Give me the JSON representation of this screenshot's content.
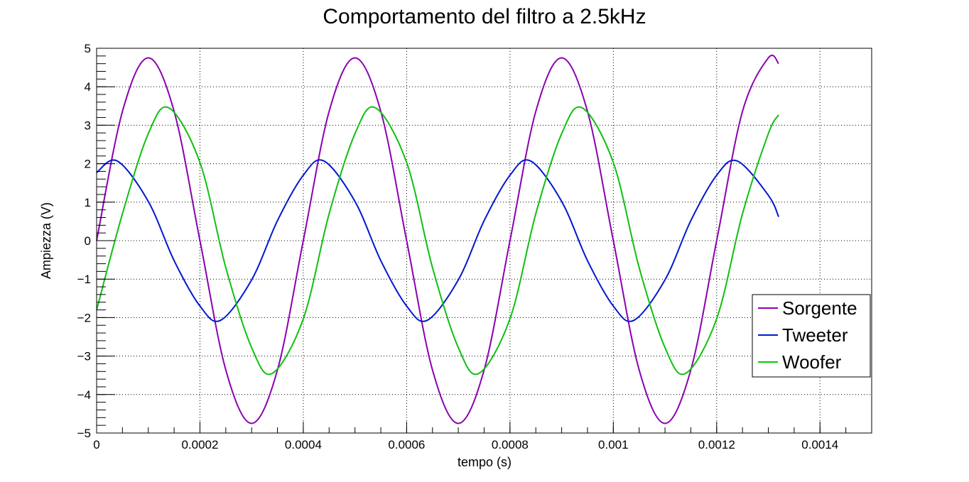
{
  "chart_data": {
    "type": "line",
    "title": "Comportamento del filtro a 2.5kHz",
    "xlabel": "tempo (s)",
    "ylabel": "Ampiezza (V)",
    "xlim": [
      0,
      0.0015
    ],
    "ylim": [
      -5,
      5
    ],
    "x_ticks": [
      0,
      0.0002,
      0.0004,
      0.0006,
      0.0008,
      0.001,
      0.0012,
      0.0014
    ],
    "x_tick_labels": [
      "0",
      "0.0002",
      "0.0004",
      "0.0006",
      "0.0008",
      "0.001",
      "0.0012",
      "0.0014"
    ],
    "y_ticks": [
      -5,
      -4,
      -3,
      -2,
      -1,
      0,
      1,
      2,
      3,
      4,
      5
    ],
    "y_tick_labels": [
      "−5",
      "−4",
      "−3",
      "−2",
      "−1",
      "0",
      "1",
      "2",
      "3",
      "4",
      "5"
    ],
    "grid": true,
    "legend_position": "right",
    "x_range_data": [
      0,
      0.00132
    ],
    "series": [
      {
        "name": "Sorgente",
        "color": "#8b00b0",
        "x": [
          0,
          5e-05,
          0.0001,
          0.00015,
          0.0002,
          0.00025,
          0.0003,
          0.00035,
          0.0004,
          0.00045,
          0.0005,
          0.00055,
          0.0006,
          0.00065,
          0.0007,
          0.00075,
          0.0008,
          0.00085,
          0.0009,
          0.00095,
          0.001,
          0.00105,
          0.0011,
          0.00115,
          0.0012,
          0.00125,
          0.0013,
          0.00132
        ],
        "y": [
          0,
          3.36,
          4.75,
          3.36,
          0,
          -3.36,
          -4.75,
          -3.36,
          0,
          3.36,
          4.75,
          3.36,
          0,
          -3.36,
          -4.75,
          -3.36,
          0,
          3.36,
          4.75,
          3.36,
          0,
          -3.36,
          -4.75,
          -3.36,
          0,
          3.36,
          4.75,
          4.6
        ]
      },
      {
        "name": "Tweeter",
        "color": "#0018d0",
        "x": [
          0,
          4e-05,
          0.0001,
          0.00015,
          0.0002,
          0.00024,
          0.0003,
          0.00035,
          0.0004,
          0.00044,
          0.0005,
          0.00055,
          0.0006,
          0.00064,
          0.0007,
          0.00075,
          0.0008,
          0.00084,
          0.0009,
          0.00095,
          0.001,
          0.00104,
          0.0011,
          0.00115,
          0.0012,
          0.00124,
          0.0013,
          0.00132
        ],
        "y": [
          1.77,
          2.07,
          1.02,
          -0.52,
          -1.7,
          -2.07,
          -1.02,
          0.52,
          1.7,
          2.07,
          1.02,
          -0.52,
          -1.7,
          -2.07,
          -1.02,
          0.52,
          1.7,
          2.07,
          1.02,
          -0.52,
          -1.7,
          -2.07,
          -1.02,
          0.52,
          1.7,
          2.07,
          1.18,
          0.62
        ]
      },
      {
        "name": "Woofer",
        "color": "#10c010",
        "x": [
          0,
          5e-05,
          0.0001,
          0.00014,
          0.0002,
          0.00025,
          0.0003,
          0.00034,
          0.0004,
          0.00045,
          0.0005,
          0.00054,
          0.0006,
          0.00065,
          0.0007,
          0.00074,
          0.0008,
          0.00085,
          0.0009,
          0.00094,
          0.001,
          0.00105,
          0.0011,
          0.00114,
          0.0012,
          0.00125,
          0.0013,
          0.00132
        ],
        "y": [
          -1.8,
          0.7,
          2.78,
          3.45,
          2.03,
          -0.7,
          -2.78,
          -3.45,
          -2.03,
          0.7,
          2.78,
          3.45,
          2.03,
          -0.7,
          -2.78,
          -3.45,
          -2.03,
          0.7,
          2.78,
          3.45,
          2.03,
          -0.7,
          -2.78,
          -3.45,
          -2.03,
          0.7,
          2.78,
          3.27
        ]
      }
    ]
  }
}
